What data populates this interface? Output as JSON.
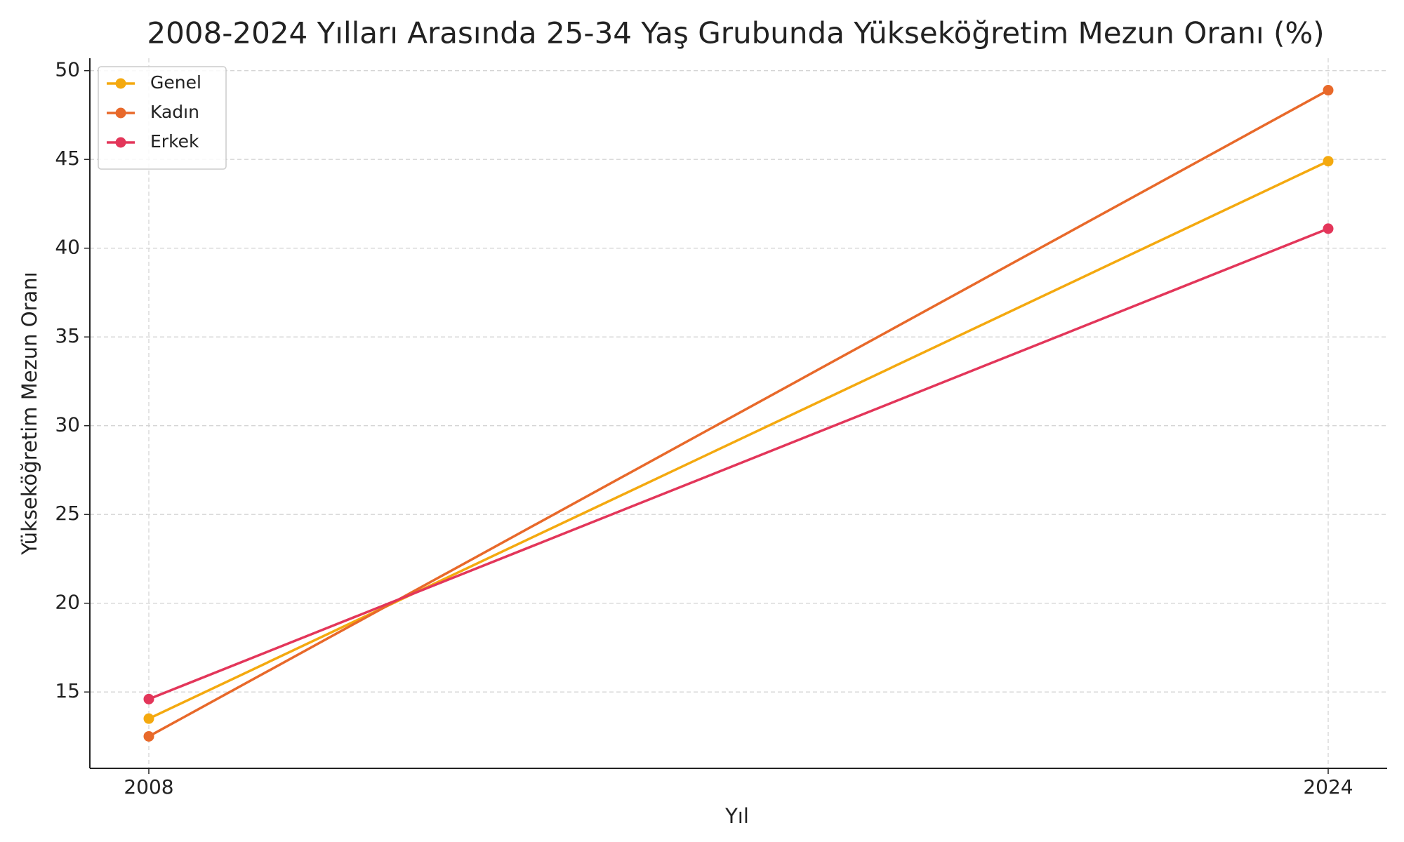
{
  "chart_data": {
    "type": "line",
    "title": "2008-2024 Yılları Arasında 25-34 Yaş Grubunda Yükseköğretim Mezun Oranı (%)",
    "x_label": "Yıl",
    "y_label": "Yükseköğretim Mezun Oranı",
    "x": [
      2008,
      2024
    ],
    "series": [
      {
        "name": "Genel",
        "color": "#f4a90f",
        "values": [
          13.5,
          44.9
        ]
      },
      {
        "name": "Kadın",
        "color": "#e8692a",
        "values": [
          12.5,
          48.9
        ]
      },
      {
        "name": "Erkek",
        "color": "#e3365a",
        "values": [
          14.6,
          41.1
        ]
      }
    ],
    "xlim": [
      2007.2,
      2024.8
    ],
    "xticks": [
      2008,
      2024
    ],
    "ylim": [
      10.7,
      50.7
    ],
    "yticks": [
      15,
      20,
      25,
      30,
      35,
      40,
      45,
      50
    ],
    "grid": true,
    "legend": "upper left"
  }
}
